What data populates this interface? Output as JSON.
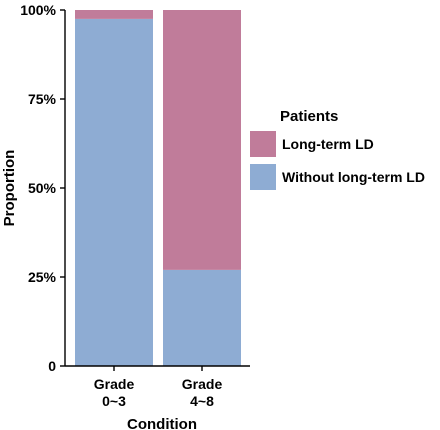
{
  "chart_data": {
    "type": "bar",
    "stacked": true,
    "categories": [
      [
        "Grade",
        "0~3"
      ],
      [
        "Grade",
        "4~8"
      ]
    ],
    "series": [
      {
        "name": "Without long-term LD",
        "values": [
          0.975,
          0.27
        ],
        "color": "#8eacd3"
      },
      {
        "name": "Long-term LD",
        "values": [
          0.025,
          0.73
        ],
        "color": "#c07c9a"
      }
    ],
    "xlabel": "Condition",
    "ylabel": "Proportion",
    "ylim": [
      0,
      1
    ],
    "yticks": [
      {
        "value": 0,
        "label": "0"
      },
      {
        "value": 0.25,
        "label": "25%"
      },
      {
        "value": 0.5,
        "label": "50%"
      },
      {
        "value": 0.75,
        "label": "75%"
      },
      {
        "value": 1,
        "label": "100%"
      }
    ],
    "legend": {
      "title": "Patients",
      "placement": "right",
      "entries": [
        {
          "label": "Long-term LD",
          "color": "#c07c9a"
        },
        {
          "label": "Without long-term LD",
          "color": "#8eacd3"
        }
      ]
    },
    "grid": false
  }
}
